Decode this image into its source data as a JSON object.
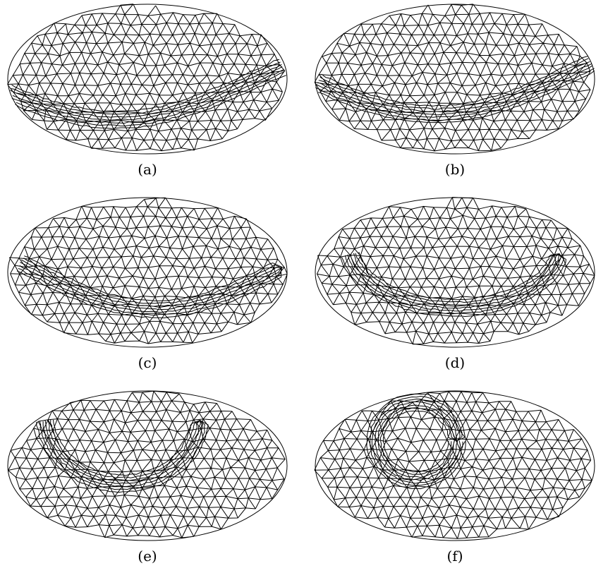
{
  "figure": {
    "panels": [
      {
        "caption": "(a)",
        "shape": "s-band"
      },
      {
        "caption": "(b)",
        "shape": "s-band"
      },
      {
        "caption": "(c)",
        "shape": "s-band"
      },
      {
        "caption": "(d)",
        "shape": "u-band"
      },
      {
        "caption": "(e)",
        "shape": "u-band"
      },
      {
        "caption": "(f)",
        "shape": "ring"
      }
    ],
    "line_color": "#000000",
    "background": "#ffffff"
  }
}
